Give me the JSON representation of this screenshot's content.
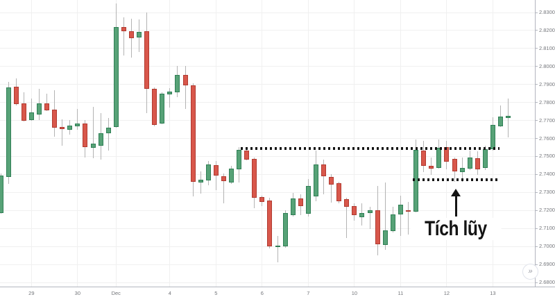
{
  "chart_data": {
    "type": "candlestick",
    "title": "",
    "grid": true,
    "y_axis": {
      "side": "right",
      "min": 2.68,
      "max": 2.83,
      "labels": [
        "2.83000",
        "2.82000",
        "2.81000",
        "2.80000",
        "2.79000",
        "2.78000",
        "2.77000",
        "2.76000",
        "2.75000",
        "2.74000",
        "2.73000",
        "2.72000",
        "2.71000",
        "2.70000",
        "2.69000",
        "2.68000"
      ]
    },
    "x_axis": {
      "ticks": [
        {
          "label": "29",
          "candle_index": 4
        },
        {
          "label": "30",
          "candle_index": 10
        },
        {
          "label": "Dec",
          "candle_index": 15
        },
        {
          "label": "4",
          "candle_index": 22
        },
        {
          "label": "5",
          "candle_index": 28
        },
        {
          "label": "6",
          "candle_index": 34
        },
        {
          "label": "7",
          "candle_index": 40
        },
        {
          "label": "10",
          "candle_index": 46
        },
        {
          "label": "11",
          "candle_index": 52
        },
        {
          "label": "12",
          "candle_index": 58
        },
        {
          "label": "13",
          "candle_index": 64
        }
      ]
    },
    "candles": [
      {
        "o": 2.7185,
        "h": 2.7405,
        "l": 2.7181,
        "c": 2.7394
      },
      {
        "o": 2.7386,
        "h": 2.7914,
        "l": 2.7347,
        "c": 2.7883
      },
      {
        "o": 2.7887,
        "h": 2.7934,
        "l": 2.7783,
        "c": 2.7791
      },
      {
        "o": 2.7795,
        "h": 2.7856,
        "l": 2.7694,
        "c": 2.7698
      },
      {
        "o": 2.7702,
        "h": 2.7822,
        "l": 2.7698,
        "c": 2.7745
      },
      {
        "o": 2.7733,
        "h": 2.7876,
        "l": 2.7702,
        "c": 2.7795
      },
      {
        "o": 2.7795,
        "h": 2.7849,
        "l": 2.7752,
        "c": 2.7756
      },
      {
        "o": 2.776,
        "h": 2.7868,
        "l": 2.761,
        "c": 2.766
      },
      {
        "o": 2.7664,
        "h": 2.7706,
        "l": 2.7559,
        "c": 2.7652
      },
      {
        "o": 2.7648,
        "h": 2.7702,
        "l": 2.7621,
        "c": 2.7671
      },
      {
        "o": 2.7667,
        "h": 2.7764,
        "l": 2.7648,
        "c": 2.7683
      },
      {
        "o": 2.7683,
        "h": 2.7702,
        "l": 2.7494,
        "c": 2.7552
      },
      {
        "o": 2.7548,
        "h": 2.7775,
        "l": 2.749,
        "c": 2.7571
      },
      {
        "o": 2.7559,
        "h": 2.7741,
        "l": 2.7482,
        "c": 2.7629
      },
      {
        "o": 2.7629,
        "h": 2.7714,
        "l": 2.7532,
        "c": 2.766
      },
      {
        "o": 2.7664,
        "h": 2.835,
        "l": 2.766,
        "c": 2.8219
      },
      {
        "o": 2.8219,
        "h": 2.8273,
        "l": 2.8061,
        "c": 2.8196
      },
      {
        "o": 2.8196,
        "h": 2.8265,
        "l": 2.8049,
        "c": 2.8157
      },
      {
        "o": 2.8161,
        "h": 2.8261,
        "l": 2.808,
        "c": 2.8192
      },
      {
        "o": 2.8196,
        "h": 2.83,
        "l": 2.7741,
        "c": 2.7876
      },
      {
        "o": 2.7876,
        "h": 2.7883,
        "l": 2.7667,
        "c": 2.7675
      },
      {
        "o": 2.7683,
        "h": 2.7856,
        "l": 2.7679,
        "c": 2.7849
      },
      {
        "o": 2.7845,
        "h": 2.788,
        "l": 2.7772,
        "c": 2.786
      },
      {
        "o": 2.7856,
        "h": 2.8003,
        "l": 2.7829,
        "c": 2.7953
      },
      {
        "o": 2.7953,
        "h": 2.8003,
        "l": 2.7764,
        "c": 2.7895
      },
      {
        "o": 2.7895,
        "h": 2.7907,
        "l": 2.7278,
        "c": 2.7359
      },
      {
        "o": 2.7355,
        "h": 2.7417,
        "l": 2.7293,
        "c": 2.737
      },
      {
        "o": 2.7367,
        "h": 2.7475,
        "l": 2.734,
        "c": 2.7455
      },
      {
        "o": 2.7451,
        "h": 2.7475,
        "l": 2.7313,
        "c": 2.7394
      },
      {
        "o": 2.739,
        "h": 2.7405,
        "l": 2.7239,
        "c": 2.7363
      },
      {
        "o": 2.7355,
        "h": 2.7448,
        "l": 2.7347,
        "c": 2.7432
      },
      {
        "o": 2.7428,
        "h": 2.7552,
        "l": 2.7355,
        "c": 2.7536
      },
      {
        "o": 2.7532,
        "h": 2.7552,
        "l": 2.7478,
        "c": 2.7482
      },
      {
        "o": 2.7486,
        "h": 2.7494,
        "l": 2.7212,
        "c": 2.727
      },
      {
        "o": 2.7274,
        "h": 2.7282,
        "l": 2.7224,
        "c": 2.7247
      },
      {
        "o": 2.7255,
        "h": 2.727,
        "l": 2.6989,
        "c": 2.7
      },
      {
        "o": 2.6996,
        "h": 2.7058,
        "l": 2.6911,
        "c": 2.7004
      },
      {
        "o": 2.7,
        "h": 2.7201,
        "l": 2.6992,
        "c": 2.7185
      },
      {
        "o": 2.7174,
        "h": 2.7297,
        "l": 2.7166,
        "c": 2.7266
      },
      {
        "o": 2.7266,
        "h": 2.729,
        "l": 2.7174,
        "c": 2.7224
      },
      {
        "o": 2.7181,
        "h": 2.7374,
        "l": 2.7166,
        "c": 2.7336
      },
      {
        "o": 2.7278,
        "h": 2.7532,
        "l": 2.7251,
        "c": 2.7455
      },
      {
        "o": 2.7455,
        "h": 2.7482,
        "l": 2.729,
        "c": 2.739
      },
      {
        "o": 2.7386,
        "h": 2.7401,
        "l": 2.7243,
        "c": 2.7343
      },
      {
        "o": 2.7351,
        "h": 2.7359,
        "l": 2.7239,
        "c": 2.7251
      },
      {
        "o": 2.7263,
        "h": 2.727,
        "l": 2.7046,
        "c": 2.722
      },
      {
        "o": 2.7224,
        "h": 2.7239,
        "l": 2.7143,
        "c": 2.7174
      },
      {
        "o": 2.7162,
        "h": 2.7239,
        "l": 2.7116,
        "c": 2.7185
      },
      {
        "o": 2.7185,
        "h": 2.722,
        "l": 2.7097,
        "c": 2.7201
      },
      {
        "o": 2.7201,
        "h": 2.7336,
        "l": 2.695,
        "c": 2.7012
      },
      {
        "o": 2.7008,
        "h": 2.7355,
        "l": 2.6981,
        "c": 2.7089
      },
      {
        "o": 2.7085,
        "h": 2.722,
        "l": 2.7077,
        "c": 2.7178
      },
      {
        "o": 2.7178,
        "h": 2.7282,
        "l": 2.7058,
        "c": 2.7232
      },
      {
        "o": 2.7201,
        "h": 2.7247,
        "l": 2.7066,
        "c": 2.7193
      },
      {
        "o": 2.7193,
        "h": 2.7594,
        "l": 2.7189,
        "c": 2.7536
      },
      {
        "o": 2.7532,
        "h": 2.7586,
        "l": 2.7413,
        "c": 2.7448
      },
      {
        "o": 2.7448,
        "h": 2.7494,
        "l": 2.7397,
        "c": 2.7432
      },
      {
        "o": 2.7436,
        "h": 2.7594,
        "l": 2.7432,
        "c": 2.7548
      },
      {
        "o": 2.7552,
        "h": 2.7586,
        "l": 2.7428,
        "c": 2.7471
      },
      {
        "o": 2.7486,
        "h": 2.7494,
        "l": 2.7359,
        "c": 2.7417
      },
      {
        "o": 2.7413,
        "h": 2.7494,
        "l": 2.7359,
        "c": 2.7436
      },
      {
        "o": 2.7432,
        "h": 2.7532,
        "l": 2.7424,
        "c": 2.7494
      },
      {
        "o": 2.749,
        "h": 2.7529,
        "l": 2.7397,
        "c": 2.7428
      },
      {
        "o": 2.7436,
        "h": 2.7559,
        "l": 2.7424,
        "c": 2.754
      },
      {
        "o": 2.754,
        "h": 2.7718,
        "l": 2.7532,
        "c": 2.7675
      },
      {
        "o": 2.7667,
        "h": 2.7783,
        "l": 2.7664,
        "c": 2.7721
      },
      {
        "o": 2.7714,
        "h": 2.7822,
        "l": 2.7606,
        "c": 2.7725
      }
    ],
    "annotations": {
      "range_lines": [
        {
          "name": "resistance-dotted-line",
          "price": 2.7545,
          "from_index": 31.2,
          "to_index": 64.9
        },
        {
          "name": "support-dotted-line",
          "price": 2.737,
          "from_index": 53.6,
          "to_index": 64.7
        }
      ],
      "arrow": {
        "x_index": 59.2,
        "tip_price": 2.732,
        "tail_price": 2.7166
      },
      "label": {
        "text": "Tích lũy",
        "x_index": 59.2,
        "price": 2.7095
      }
    },
    "colors": {
      "up_fill": "#57a277",
      "up_border": "#2f7f55",
      "down_fill": "#d8574b",
      "down_border": "#b03a30",
      "wick": "#b3b3b3",
      "grid": "#f0f0f0",
      "axis_border": "#b2b5be",
      "axis_text": "#73757a",
      "annotation": "#141414",
      "background": "#ffffff"
    }
  },
  "controls": {
    "collapse_button_icon": "»"
  }
}
